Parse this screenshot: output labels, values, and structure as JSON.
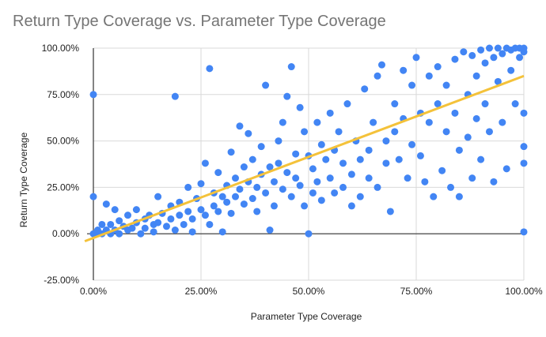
{
  "chart_data": {
    "type": "scatter",
    "title": "Return Type Coverage vs. Parameter Type Coverage",
    "xlabel": "Parameter Type Coverage",
    "ylabel": "Return Type Coverage",
    "xlim": [
      0,
      1
    ],
    "ylim": [
      -0.25,
      1
    ],
    "x_ticks": [
      0,
      0.25,
      0.5,
      0.75,
      1
    ],
    "x_tick_labels": [
      "0.00%",
      "25.00%",
      "50.00%",
      "75.00%",
      "100.00%"
    ],
    "y_ticks": [
      -0.25,
      0,
      0.25,
      0.5,
      0.75,
      1
    ],
    "y_tick_labels": [
      "-25.00%",
      "0.00%",
      "25.00%",
      "50.00%",
      "75.00%",
      "100.00%"
    ],
    "grid": true,
    "point_color": "#4285f4",
    "trendline": {
      "type": "linear",
      "color": "#f4c23a",
      "x": [
        -0.02,
        1.0
      ],
      "y": [
        -0.04,
        0.85
      ]
    },
    "points": [
      [
        0.0,
        0.0
      ],
      [
        0.0,
        0.75
      ],
      [
        0.0,
        0.2
      ],
      [
        0.01,
        0.0
      ],
      [
        0.01,
        0.02
      ],
      [
        0.02,
        0.05
      ],
      [
        0.02,
        0.0
      ],
      [
        0.03,
        0.16
      ],
      [
        0.03,
        0.02
      ],
      [
        0.04,
        0.0
      ],
      [
        0.04,
        0.05
      ],
      [
        0.05,
        0.13
      ],
      [
        0.05,
        0.02
      ],
      [
        0.06,
        0.07
      ],
      [
        0.06,
        0.0
      ],
      [
        0.07,
        0.04
      ],
      [
        0.08,
        0.1
      ],
      [
        0.08,
        0.02
      ],
      [
        0.09,
        0.03
      ],
      [
        0.1,
        0.13
      ],
      [
        0.1,
        0.06
      ],
      [
        0.11,
        0.0
      ],
      [
        0.12,
        0.08
      ],
      [
        0.12,
        0.03
      ],
      [
        0.13,
        0.1
      ],
      [
        0.14,
        0.05
      ],
      [
        0.14,
        0.01
      ],
      [
        0.15,
        0.2
      ],
      [
        0.15,
        0.06
      ],
      [
        0.16,
        0.11
      ],
      [
        0.17,
        0.04
      ],
      [
        0.18,
        0.15
      ],
      [
        0.18,
        0.08
      ],
      [
        0.19,
        0.74
      ],
      [
        0.19,
        0.02
      ],
      [
        0.2,
        0.17
      ],
      [
        0.2,
        0.1
      ],
      [
        0.21,
        0.05
      ],
      [
        0.22,
        0.12
      ],
      [
        0.22,
        0.25
      ],
      [
        0.23,
        0.08
      ],
      [
        0.23,
        0.01
      ],
      [
        0.24,
        0.19
      ],
      [
        0.25,
        0.13
      ],
      [
        0.25,
        0.27
      ],
      [
        0.26,
        0.38
      ],
      [
        0.26,
        0.1
      ],
      [
        0.27,
        0.89
      ],
      [
        0.27,
        0.05
      ],
      [
        0.28,
        0.22
      ],
      [
        0.28,
        0.15
      ],
      [
        0.29,
        0.33
      ],
      [
        0.29,
        0.12
      ],
      [
        0.3,
        0.2
      ],
      [
        0.3,
        0.01
      ],
      [
        0.31,
        0.26
      ],
      [
        0.31,
        0.17
      ],
      [
        0.32,
        0.44
      ],
      [
        0.32,
        0.11
      ],
      [
        0.33,
        0.3
      ],
      [
        0.33,
        0.2
      ],
      [
        0.34,
        0.58
      ],
      [
        0.34,
        0.24
      ],
      [
        0.35,
        0.16
      ],
      [
        0.35,
        0.36
      ],
      [
        0.36,
        0.54
      ],
      [
        0.36,
        0.28
      ],
      [
        0.37,
        0.19
      ],
      [
        0.37,
        0.4
      ],
      [
        0.38,
        0.25
      ],
      [
        0.38,
        0.12
      ],
      [
        0.39,
        0.47
      ],
      [
        0.39,
        0.32
      ],
      [
        0.4,
        0.8
      ],
      [
        0.4,
        0.22
      ],
      [
        0.41,
        0.02
      ],
      [
        0.41,
        0.36
      ],
      [
        0.42,
        0.28
      ],
      [
        0.42,
        0.15
      ],
      [
        0.43,
        0.5
      ],
      [
        0.43,
        0.38
      ],
      [
        0.44,
        0.24
      ],
      [
        0.44,
        0.6
      ],
      [
        0.45,
        0.74
      ],
      [
        0.45,
        0.33
      ],
      [
        0.46,
        0.9
      ],
      [
        0.46,
        0.2
      ],
      [
        0.47,
        0.43
      ],
      [
        0.47,
        0.3
      ],
      [
        0.48,
        0.68
      ],
      [
        0.48,
        0.26
      ],
      [
        0.49,
        0.55
      ],
      [
        0.49,
        0.15
      ],
      [
        0.5,
        0.0
      ],
      [
        0.5,
        0.42
      ],
      [
        0.51,
        0.35
      ],
      [
        0.51,
        0.22
      ],
      [
        0.52,
        0.6
      ],
      [
        0.52,
        0.28
      ],
      [
        0.53,
        0.48
      ],
      [
        0.53,
        0.18
      ],
      [
        0.54,
        0.4
      ],
      [
        0.55,
        0.65
      ],
      [
        0.55,
        0.3
      ],
      [
        0.56,
        0.22
      ],
      [
        0.56,
        0.45
      ],
      [
        0.57,
        0.55
      ],
      [
        0.58,
        0.38
      ],
      [
        0.58,
        0.25
      ],
      [
        0.59,
        0.7
      ],
      [
        0.6,
        0.32
      ],
      [
        0.6,
        0.15
      ],
      [
        0.61,
        0.5
      ],
      [
        0.62,
        0.4
      ],
      [
        0.62,
        0.2
      ],
      [
        0.63,
        0.78
      ],
      [
        0.64,
        0.45
      ],
      [
        0.64,
        0.3
      ],
      [
        0.65,
        0.6
      ],
      [
        0.66,
        0.25
      ],
      [
        0.66,
        0.85
      ],
      [
        0.67,
        0.91
      ],
      [
        0.68,
        0.5
      ],
      [
        0.68,
        0.38
      ],
      [
        0.69,
        0.12
      ],
      [
        0.7,
        0.7
      ],
      [
        0.7,
        0.55
      ],
      [
        0.71,
        0.4
      ],
      [
        0.72,
        0.88
      ],
      [
        0.72,
        0.62
      ],
      [
        0.73,
        0.3
      ],
      [
        0.74,
        0.8
      ],
      [
        0.74,
        0.48
      ],
      [
        0.75,
        0.95
      ],
      [
        0.76,
        0.65
      ],
      [
        0.76,
        0.42
      ],
      [
        0.77,
        0.28
      ],
      [
        0.78,
        0.85
      ],
      [
        0.78,
        0.6
      ],
      [
        0.79,
        0.2
      ],
      [
        0.8,
        0.9
      ],
      [
        0.8,
        0.7
      ],
      [
        0.81,
        0.34
      ],
      [
        0.82,
        0.8
      ],
      [
        0.82,
        0.55
      ],
      [
        0.83,
        0.25
      ],
      [
        0.84,
        0.94
      ],
      [
        0.84,
        0.65
      ],
      [
        0.85,
        0.45
      ],
      [
        0.85,
        0.2
      ],
      [
        0.86,
        0.98
      ],
      [
        0.87,
        0.75
      ],
      [
        0.87,
        0.52
      ],
      [
        0.88,
        0.3
      ],
      [
        0.88,
        0.96
      ],
      [
        0.89,
        0.85
      ],
      [
        0.89,
        0.62
      ],
      [
        0.9,
        0.99
      ],
      [
        0.9,
        0.4
      ],
      [
        0.91,
        0.92
      ],
      [
        0.91,
        0.7
      ],
      [
        0.92,
        1.0
      ],
      [
        0.92,
        0.55
      ],
      [
        0.93,
        0.95
      ],
      [
        0.93,
        0.28
      ],
      [
        0.94,
        1.0
      ],
      [
        0.94,
        0.82
      ],
      [
        0.95,
        0.97
      ],
      [
        0.95,
        0.6
      ],
      [
        0.96,
        1.0
      ],
      [
        0.96,
        0.35
      ],
      [
        0.97,
        0.99
      ],
      [
        0.97,
        0.88
      ],
      [
        0.98,
        1.0
      ],
      [
        0.98,
        0.7
      ],
      [
        0.99,
        1.0
      ],
      [
        0.99,
        0.95
      ],
      [
        1.0,
        1.0
      ],
      [
        1.0,
        0.98
      ],
      [
        1.0,
        0.65
      ],
      [
        1.0,
        0.47
      ],
      [
        1.0,
        0.38
      ],
      [
        1.0,
        0.01
      ]
    ]
  }
}
